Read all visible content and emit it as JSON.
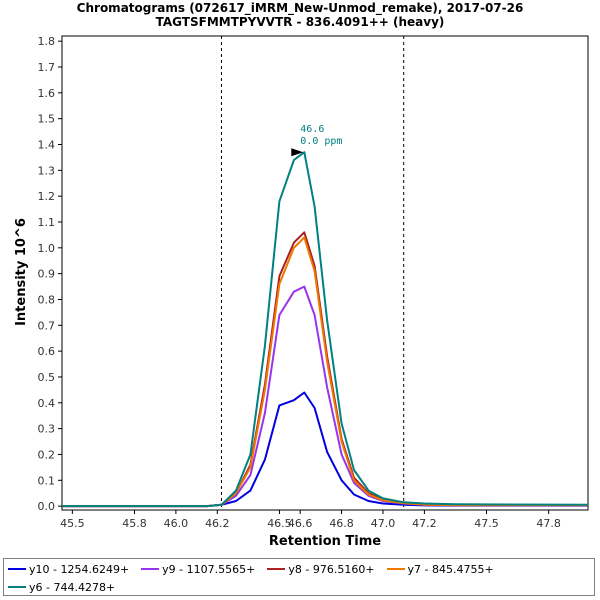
{
  "chart_data": {
    "type": "line",
    "title": "Chromatograms (072617_iMRM_New-Unmod_remake), 2017-07-26",
    "subtitle": "TAGTSFMMTPYVVTR - 836.4091++ (heavy)",
    "xlabel": "Retention Time",
    "ylabel": "Intensity 10^6",
    "xlim": [
      45.45,
      47.99
    ],
    "ylim": [
      -0.015,
      1.82
    ],
    "xticks": [
      45.5,
      45.8,
      46.0,
      46.2,
      46.5,
      46.6,
      46.8,
      47.0,
      47.2,
      47.5,
      47.8
    ],
    "xtick_labels": [
      "45.5",
      "45.8",
      "46.0",
      "46.2",
      "46.5",
      "46.6",
      "46.8",
      "47.0",
      "47.2",
      "47.5",
      "47.8"
    ],
    "yticks": [
      0.0,
      0.1,
      0.2,
      0.3,
      0.4,
      0.5,
      0.6,
      0.7,
      0.8,
      0.9,
      1.0,
      1.1,
      1.2,
      1.3,
      1.4,
      1.5,
      1.6,
      1.7,
      1.8
    ],
    "ytick_labels": [
      "0.0",
      "0.1",
      "0.2",
      "0.3",
      "0.4",
      "0.5",
      "0.6",
      "0.7",
      "0.8",
      "0.9",
      "1.0",
      "1.1",
      "1.2",
      "1.3",
      "1.4",
      "1.5",
      "1.6",
      "1.7",
      "1.8"
    ],
    "grid": false,
    "legend_position": "bottom",
    "boundaries": [
      46.22,
      47.1
    ],
    "x": [
      45.45,
      46.15,
      46.22,
      46.29,
      46.36,
      46.43,
      46.5,
      46.57,
      46.62,
      46.67,
      46.73,
      46.8,
      46.86,
      46.93,
      47.0,
      47.1,
      47.2,
      47.35,
      47.99
    ],
    "series": [
      {
        "name": "y10 - 1254.6249+",
        "color": "#0000e0",
        "values": [
          0.0,
          0.0,
          0.005,
          0.02,
          0.06,
          0.18,
          0.39,
          0.41,
          0.44,
          0.38,
          0.21,
          0.1,
          0.045,
          0.02,
          0.01,
          0.005,
          0.003,
          0.002,
          0.002
        ]
      },
      {
        "name": "y9 - 1107.5565+",
        "color": "#9933ee",
        "values": [
          0.0,
          0.0,
          0.005,
          0.04,
          0.12,
          0.36,
          0.74,
          0.83,
          0.85,
          0.74,
          0.46,
          0.2,
          0.09,
          0.04,
          0.02,
          0.01,
          0.005,
          0.003,
          0.003
        ]
      },
      {
        "name": "y8 - 976.5160+",
        "color": "#aa2222",
        "values": [
          0.0,
          0.0,
          0.005,
          0.05,
          0.16,
          0.47,
          0.89,
          1.02,
          1.06,
          0.93,
          0.58,
          0.26,
          0.11,
          0.05,
          0.025,
          0.012,
          0.006,
          0.004,
          0.004
        ]
      },
      {
        "name": "y7 - 845.4755+",
        "color": "#ee7700",
        "values": [
          0.0,
          0.0,
          0.005,
          0.05,
          0.15,
          0.45,
          0.86,
          1.0,
          1.04,
          0.91,
          0.56,
          0.25,
          0.1,
          0.045,
          0.022,
          0.011,
          0.006,
          0.004,
          0.004
        ]
      },
      {
        "name": "y6 - 744.4278+",
        "color": "#008080",
        "values": [
          0.0,
          0.0,
          0.005,
          0.06,
          0.2,
          0.62,
          1.18,
          1.34,
          1.37,
          1.16,
          0.72,
          0.32,
          0.14,
          0.06,
          0.03,
          0.015,
          0.01,
          0.007,
          0.005
        ]
      }
    ],
    "annotation": {
      "x": 46.62,
      "y": 1.37,
      "line1": "46.6",
      "line2": "0.0 ppm"
    }
  }
}
